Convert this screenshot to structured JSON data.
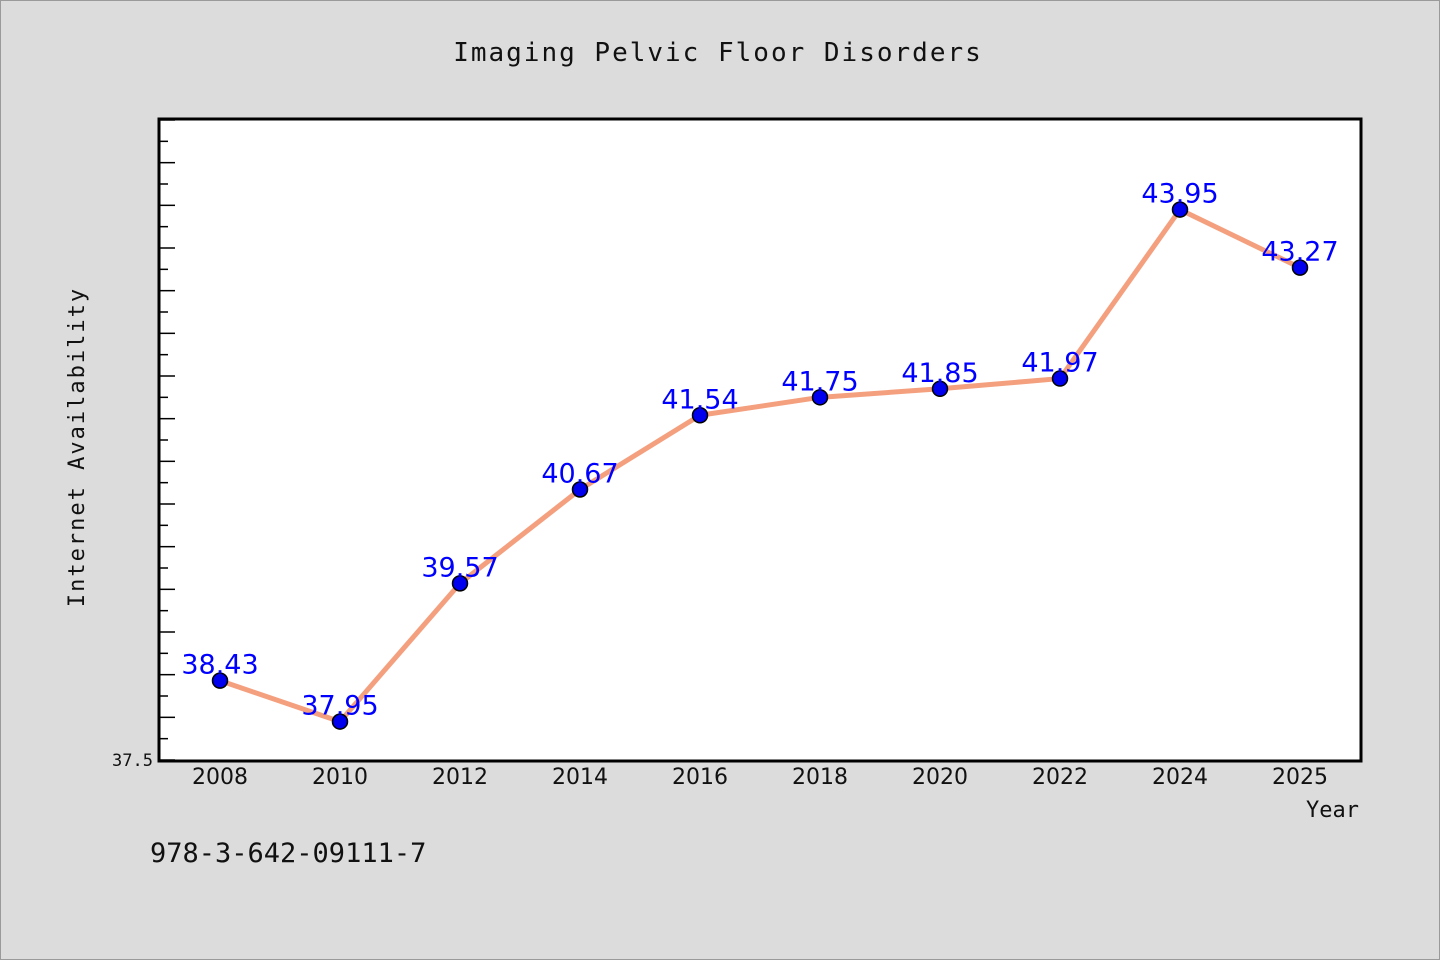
{
  "chart_data": {
    "type": "line",
    "title": "Imaging Pelvic Floor Disorders",
    "xlabel": "Year",
    "ylabel": "Internet Availability",
    "categories": [
      "2008",
      "2010",
      "2012",
      "2014",
      "2016",
      "2018",
      "2020",
      "2022",
      "2024",
      "2025"
    ],
    "values": [
      38.43,
      37.95,
      39.57,
      40.67,
      41.54,
      41.75,
      41.85,
      41.97,
      43.95,
      43.27
    ],
    "data_labels": [
      "38.43",
      "37.95",
      "39.57",
      "40.67",
      "41.54",
      "41.75",
      "41.85",
      "41.97",
      "43.95",
      "43.27"
    ],
    "ylim": [
      37.5,
      45.0
    ],
    "ytick_label": "37.5",
    "grid": false,
    "line_color": "#f4a07f",
    "marker_color": "#0000ee",
    "label_color": "#0000ff"
  },
  "annotation": {
    "isbn": "978-3-642-09111-7"
  }
}
